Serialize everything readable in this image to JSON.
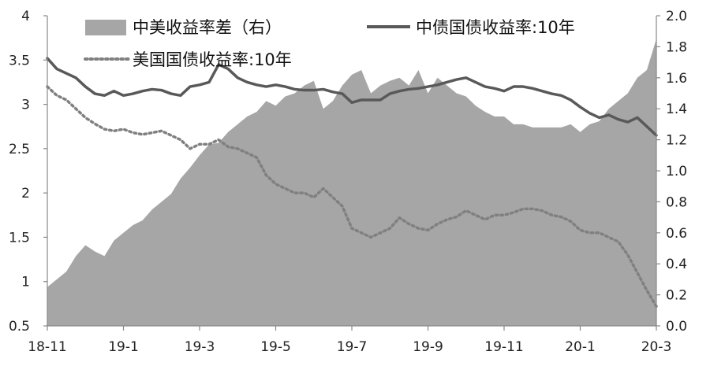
{
  "chart_data": {
    "type": "line",
    "legend": [
      {
        "name": "中美收益率差（右）",
        "marker": "area",
        "color": "#a6a6a6"
      },
      {
        "name": "中债国债收益率:10年",
        "marker": "line",
        "color": "#595959"
      },
      {
        "name": "美国国债收益率:10年",
        "marker": "dotted",
        "color": "#808080"
      }
    ],
    "legend_placement": "top",
    "grid": false,
    "x_ticks": [
      "18-11",
      "19-1",
      "19-3",
      "19-5",
      "19-7",
      "19-9",
      "19-11",
      "20-1",
      "20-3"
    ],
    "y_left": {
      "min": 0.5,
      "max": 4,
      "ticks": [
        "0.5",
        "1",
        "1.5",
        "2",
        "2.5",
        "3",
        "3.5",
        "4"
      ]
    },
    "y_right": {
      "min": 0.0,
      "max": 2.0,
      "ticks": [
        "0.0",
        "0.2",
        "0.4",
        "0.6",
        "0.8",
        "1.0",
        "1.2",
        "1.4",
        "1.6",
        "1.8",
        "2.0"
      ]
    },
    "x": [
      0,
      0.25,
      0.5,
      0.75,
      1,
      1.25,
      1.5,
      1.75,
      2,
      2.25,
      2.5,
      2.75,
      3,
      3.25,
      3.5,
      3.75,
      4,
      4.25,
      4.5,
      4.75,
      5,
      5.25,
      5.5,
      5.75,
      6,
      6.25,
      6.5,
      6.75,
      7,
      7.25,
      7.5,
      7.75,
      8,
      8.25,
      8.5,
      8.75,
      9,
      9.25,
      9.5,
      9.75,
      10,
      10.25,
      10.5,
      10.75,
      11,
      11.25,
      11.5,
      11.75,
      12,
      12.25,
      12.5,
      12.75,
      13,
      13.25,
      13.5,
      13.75,
      14,
      14.25,
      14.5,
      14.75,
      15,
      15.25,
      15.5,
      15.75,
      16
    ],
    "series": [
      {
        "name": "中美收益率差（右）",
        "axis": "right",
        "values": [
          0.25,
          0.3,
          0.35,
          0.45,
          0.52,
          0.48,
          0.45,
          0.55,
          0.6,
          0.65,
          0.68,
          0.75,
          0.8,
          0.85,
          0.95,
          1.02,
          1.1,
          1.17,
          1.18,
          1.25,
          1.3,
          1.35,
          1.38,
          1.45,
          1.42,
          1.48,
          1.5,
          1.55,
          1.58,
          1.4,
          1.45,
          1.55,
          1.62,
          1.65,
          1.5,
          1.55,
          1.58,
          1.6,
          1.55,
          1.65,
          1.5,
          1.6,
          1.55,
          1.5,
          1.48,
          1.42,
          1.38,
          1.35,
          1.35,
          1.3,
          1.3,
          1.28,
          1.28,
          1.28,
          1.28,
          1.3,
          1.25,
          1.3,
          1.32,
          1.4,
          1.45,
          1.5,
          1.6,
          1.65,
          1.85
        ]
      },
      {
        "name": "中债国债收益率:10年",
        "axis": "left",
        "values": [
          3.52,
          3.4,
          3.35,
          3.3,
          3.2,
          3.12,
          3.1,
          3.15,
          3.1,
          3.12,
          3.15,
          3.17,
          3.16,
          3.12,
          3.1,
          3.2,
          3.22,
          3.25,
          3.45,
          3.4,
          3.3,
          3.25,
          3.22,
          3.2,
          3.22,
          3.2,
          3.17,
          3.16,
          3.16,
          3.17,
          3.14,
          3.12,
          3.02,
          3.05,
          3.05,
          3.05,
          3.12,
          3.15,
          3.17,
          3.18,
          3.2,
          3.22,
          3.25,
          3.28,
          3.3,
          3.25,
          3.2,
          3.18,
          3.15,
          3.2,
          3.2,
          3.18,
          3.15,
          3.12,
          3.1,
          3.05,
          2.97,
          2.9,
          2.85,
          2.88,
          2.83,
          2.8,
          2.85,
          2.75,
          2.65
        ]
      },
      {
        "name": "美国国债收益率:10年",
        "axis": "left",
        "values": [
          3.2,
          3.1,
          3.05,
          2.95,
          2.85,
          2.78,
          2.72,
          2.7,
          2.72,
          2.68,
          2.66,
          2.68,
          2.7,
          2.65,
          2.6,
          2.5,
          2.55,
          2.55,
          2.6,
          2.52,
          2.5,
          2.45,
          2.4,
          2.2,
          2.1,
          2.05,
          2.0,
          2.0,
          1.95,
          2.05,
          1.95,
          1.85,
          1.6,
          1.55,
          1.5,
          1.55,
          1.6,
          1.72,
          1.65,
          1.6,
          1.58,
          1.65,
          1.7,
          1.73,
          1.8,
          1.75,
          1.7,
          1.75,
          1.75,
          1.78,
          1.82,
          1.82,
          1.8,
          1.75,
          1.73,
          1.68,
          1.58,
          1.55,
          1.55,
          1.5,
          1.45,
          1.3,
          1.1,
          0.9,
          0.72
        ]
      }
    ]
  }
}
